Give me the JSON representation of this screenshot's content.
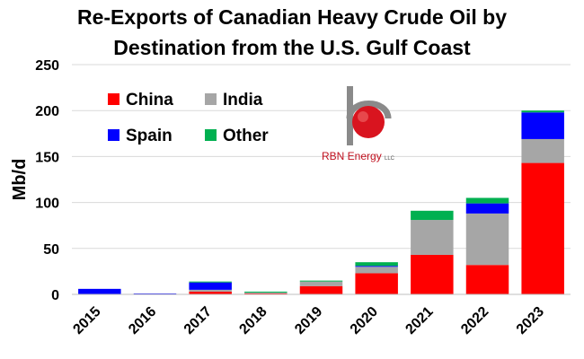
{
  "chart_data": {
    "type": "bar",
    "stacked": true,
    "title": "Re-Exports of Canadian Heavy Crude Oil by Destination from the U.S. Gulf Coast",
    "title_lines": [
      "Re-Exports of Canadian Heavy Crude Oil by",
      "Destination from the U.S. Gulf Coast"
    ],
    "xlabel": "",
    "ylabel": "Mb/d",
    "ylim": [
      0,
      250
    ],
    "yticks": [
      0,
      50,
      100,
      150,
      200,
      250
    ],
    "grid": true,
    "legend_position": "top-left",
    "categories": [
      "2015",
      "2016",
      "2017",
      "2018",
      "2019",
      "2020",
      "2021",
      "2022",
      "2023"
    ],
    "series": [
      {
        "name": "China",
        "color": "#ff0000",
        "values": [
          0,
          0,
          3,
          1,
          9,
          23,
          43,
          32,
          143
        ]
      },
      {
        "name": "India",
        "color": "#a6a6a6",
        "values": [
          0,
          0,
          2,
          1,
          5,
          7,
          38,
          56,
          26
        ]
      },
      {
        "name": "Spain",
        "color": "#0000ff",
        "values": [
          6,
          1,
          8,
          0,
          0,
          1,
          0,
          11,
          29
        ]
      },
      {
        "name": "Other",
        "color": "#00b050",
        "values": [
          0,
          0,
          1,
          1,
          1,
          4,
          10,
          6,
          2
        ]
      }
    ]
  },
  "logo": {
    "name": "rbn-energy-logo",
    "text": "RBN Energy",
    "suffix": "LLC"
  }
}
